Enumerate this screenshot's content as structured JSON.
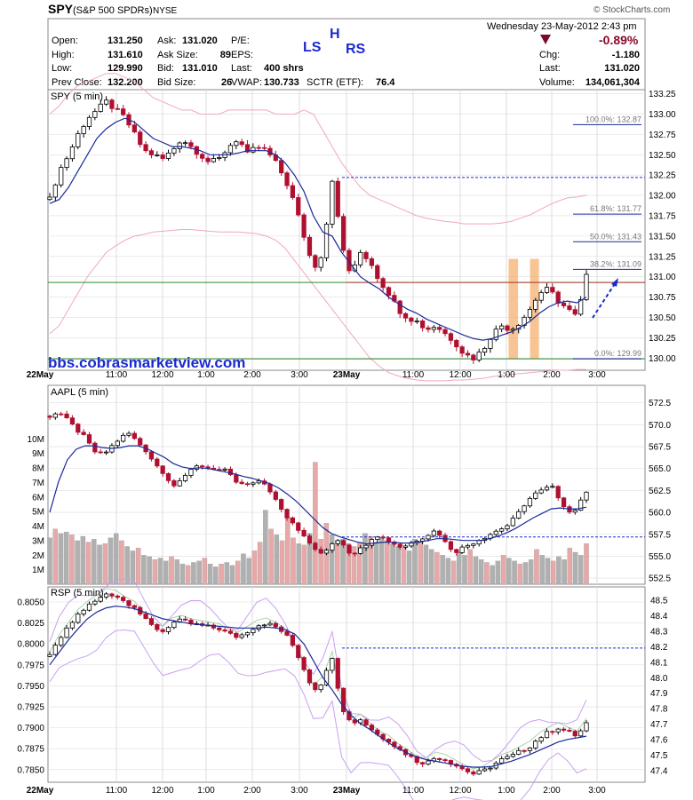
{
  "header": {
    "symbol": "SPY",
    "name": "(S&P 500 SPDRs)",
    "exchange": "NYSE",
    "watermark": "© StockCharts.com",
    "datetime": "Wednesday  23-May-2012  2:43 pm",
    "change_pct": "-0.89%",
    "fields": [
      {
        "label": "Open:",
        "value": "131.250"
      },
      {
        "label": "High:",
        "value": "131.610"
      },
      {
        "label": "Low:",
        "value": "129.990"
      },
      {
        "label": "Prev Close:",
        "value": "132.200"
      },
      {
        "label": "Ask:",
        "value": "131.020"
      },
      {
        "label": "Ask Size:",
        "value": "89"
      },
      {
        "label": "Bid:",
        "value": "131.010"
      },
      {
        "label": "Bid Size:",
        "value": "26"
      },
      {
        "label": "P/E:",
        "value": ""
      },
      {
        "label": "EPS:",
        "value": ""
      },
      {
        "label": "Last:",
        "value": "400 shrs"
      },
      {
        "label": "VWAP:",
        "value": "130.733"
      },
      {
        "label": "SCTR (ETF):",
        "value": "76.4"
      },
      {
        "label": "Chg:",
        "value": "-1.180"
      },
      {
        "label": "Last:",
        "value": "131.020"
      },
      {
        "label": "Volume:",
        "value": "134,061,304"
      }
    ],
    "pattern_label": {
      "ls": "LS",
      "h": "H",
      "rs": "RS"
    }
  },
  "colors": {
    "up": "#000000",
    "down": "#b01030",
    "ma": "#1a2a9a",
    "band": "#f0a8b8",
    "grid": "#dddddd",
    "accent_blue": "#1a2ad0",
    "green": "#2a8a2a",
    "orange": "#f4b070",
    "vol_gray": "#b0b0b0",
    "vol_pink": "#e8a8a8",
    "neg": "#8a0a2a"
  },
  "watermark_url": "bbs.cobrasmarketview.com",
  "x_axis": {
    "labels": [
      "22May",
      "11:00",
      "12:00",
      "1:00",
      "2:00",
      "3:00",
      "23May",
      "11:00",
      "12:00",
      "1:00",
      "2:00",
      "3:00"
    ]
  },
  "chart_data": [
    {
      "type": "candlestick",
      "title": "SPY (5 min)",
      "ylim": [
        129.85,
        133.3
      ],
      "yticks": [
        "133.25",
        "133.00",
        "132.75",
        "132.50",
        "132.25",
        "132.00",
        "131.75",
        "131.50",
        "131.25",
        "131.00",
        "130.75",
        "130.50",
        "130.25",
        "130.00"
      ],
      "close_path": [
        131.95,
        132.3,
        132.5,
        132.75,
        132.95,
        133.05,
        133.15,
        133.05,
        132.95,
        132.75,
        132.55,
        132.5,
        132.45,
        132.55,
        132.7,
        132.6,
        132.5,
        132.4,
        132.45,
        132.6,
        132.7,
        132.5,
        132.6,
        132.55,
        132.4,
        132.2,
        131.9,
        131.5,
        131.1,
        131.3,
        132.2,
        131.4,
        131.0,
        131.3,
        131.2,
        130.95,
        130.8,
        130.6,
        130.5,
        130.45,
        130.35,
        130.4,
        130.3,
        130.2,
        130.05,
        130.0,
        130.1,
        130.3,
        130.4,
        130.35,
        130.45,
        130.6,
        130.8,
        130.85,
        130.7,
        130.6,
        130.5,
        131.0
      ],
      "ma_path": [
        131.9,
        131.95,
        132.1,
        132.3,
        132.5,
        132.7,
        132.82,
        132.9,
        132.95,
        132.9,
        132.8,
        132.7,
        132.65,
        132.6,
        132.6,
        132.58,
        132.55,
        132.5,
        132.5,
        132.5,
        132.52,
        132.55,
        132.55,
        132.55,
        132.5,
        132.4,
        132.25,
        132.05,
        131.75,
        131.55,
        131.5,
        131.3,
        131.15,
        131.0,
        130.92,
        130.85,
        130.75,
        130.67,
        130.6,
        130.55,
        130.48,
        130.43,
        130.38,
        130.33,
        130.28,
        130.24,
        130.22,
        130.24,
        130.28,
        130.32,
        130.38,
        130.45,
        130.55,
        130.63,
        130.68,
        130.7,
        130.68,
        130.75
      ],
      "upper_band": [
        133.0,
        133.1,
        133.25,
        133.35,
        133.4,
        133.45,
        133.5,
        133.5,
        133.45,
        133.4,
        133.3,
        133.2,
        133.15,
        133.1,
        133.05,
        133.05,
        133.0,
        133.0,
        133.0,
        133.05,
        133.05,
        133.05,
        133.05,
        133.05,
        133.0,
        133.0,
        133.0,
        133.05,
        133.0,
        132.8,
        132.6,
        132.4,
        132.25,
        132.1,
        132.0,
        131.95,
        131.9,
        131.85,
        131.8,
        131.75,
        131.72,
        131.7,
        131.68,
        131.67,
        131.65,
        131.65,
        131.65,
        131.65,
        131.66,
        131.68,
        131.72,
        131.76,
        131.82,
        131.88,
        131.93,
        131.97,
        131.98,
        132.0
      ],
      "lower_band": [
        130.3,
        130.4,
        130.6,
        130.8,
        131.0,
        131.15,
        131.3,
        131.38,
        131.45,
        131.5,
        131.52,
        131.55,
        131.56,
        131.57,
        131.58,
        131.58,
        131.57,
        131.56,
        131.55,
        131.55,
        131.55,
        131.54,
        131.53,
        131.5,
        131.45,
        131.35,
        131.2,
        131.05,
        130.9,
        130.75,
        130.6,
        130.45,
        130.3,
        130.15,
        130.0,
        129.9,
        129.82,
        129.78,
        129.75,
        129.73,
        129.72,
        129.72,
        129.72,
        129.73,
        129.73,
        129.74,
        129.75,
        129.77,
        129.79,
        129.8,
        129.81,
        129.82,
        129.83,
        129.84,
        129.85,
        129.85,
        129.86,
        129.86
      ],
      "annotations": [
        {
          "label": "100.0%: 132.87",
          "value": 132.87
        },
        {
          "label": "61.8%: 131.77",
          "value": 131.77
        },
        {
          "label": "50.0%: 131.43",
          "value": 131.43
        },
        {
          "label": "38.2%: 131.09",
          "value": 131.09
        },
        {
          "label": "0.0%: 129.99",
          "value": 129.99
        }
      ],
      "hlines": {
        "red": 130.93,
        "green_upper": 130.93,
        "green_lower": 129.99,
        "blue_dashed": 132.22
      }
    },
    {
      "type": "candlestick",
      "title": "AAPL (5 min)",
      "ylim": [
        551.8,
        574.5
      ],
      "yticks": [
        "572.5",
        "570.0",
        "567.5",
        "565.0",
        "562.5",
        "560.0",
        "557.5",
        "555.0",
        "552.5"
      ],
      "vol_ticks": [
        "10M",
        "9M",
        "8M",
        "7M",
        "6M",
        "5M",
        "4M",
        "3M",
        "2M",
        "1M"
      ],
      "close_path": [
        571.0,
        571.5,
        570.5,
        569.5,
        568.5,
        567.0,
        566.5,
        567.5,
        568.5,
        569.0,
        568.0,
        567.0,
        565.5,
        564.5,
        563.0,
        563.5,
        565.0,
        565.5,
        565.0,
        564.5,
        565.0,
        563.5,
        563.0,
        563.5,
        563.5,
        562.5,
        561.0,
        559.5,
        558.5,
        557.0,
        556.0,
        555.0,
        556.5,
        557.0,
        555.5,
        555.5,
        556.5,
        557.5,
        557.0,
        556.5,
        556.0,
        556.5,
        557.0,
        557.5,
        558.0,
        556.5,
        555.5,
        556.0,
        556.5,
        557.0,
        557.5,
        558.0,
        558.5,
        559.5,
        561.0,
        562.0,
        562.5,
        563.0,
        561.5,
        560.0,
        560.5,
        562.5
      ],
      "ma_path": [
        560.0,
        563.5,
        566.0,
        567.2,
        567.6,
        567.6,
        567.4,
        567.3,
        567.4,
        567.6,
        567.6,
        567.3,
        566.8,
        566.3,
        565.6,
        565.2,
        565.0,
        565.1,
        565.0,
        564.8,
        564.6,
        564.4,
        564.1,
        563.9,
        563.6,
        563.3,
        562.8,
        562.1,
        561.3,
        560.3,
        559.3,
        558.3,
        557.6,
        557.2,
        556.9,
        556.6,
        556.4,
        556.5,
        556.6,
        556.6,
        556.5,
        556.5,
        556.6,
        556.8,
        557.0,
        557.0,
        556.9,
        556.8,
        556.8,
        556.8,
        557.0,
        557.3,
        557.7,
        558.2,
        558.8,
        559.4,
        559.9,
        560.4,
        560.5,
        560.4,
        560.4,
        560.6
      ],
      "volume_m": [
        3.2,
        3.8,
        3.5,
        3.6,
        3.4,
        3.0,
        3.3,
        2.9,
        3.1,
        2.7,
        2.8,
        3.2,
        3.5,
        3.0,
        2.6,
        2.3,
        2.5,
        2.0,
        1.9,
        1.7,
        1.8,
        1.6,
        1.9,
        1.7,
        1.4,
        1.3,
        1.5,
        1.6,
        1.8,
        1.4,
        1.2,
        1.4,
        1.5,
        1.3,
        1.6,
        2.1,
        1.8,
        2.3,
        2.9,
        5.1,
        3.8,
        3.4,
        3.0,
        4.6,
        3.2,
        2.8,
        2.7,
        3.5,
        8.4,
        3.1,
        4.2,
        3.4,
        3.0,
        3.1,
        2.8,
        2.6,
        2.9,
        3.5,
        3.3,
        2.9,
        3.2,
        3.0,
        2.8,
        2.6,
        2.5,
        2.3,
        3.1,
        2.9,
        2.7,
        2.4,
        2.2,
        2.0,
        1.8,
        1.6,
        2.2,
        2.0,
        2.4,
        1.9,
        1.7,
        1.5,
        1.3,
        1.6,
        2.0,
        1.8,
        1.6,
        1.4,
        1.5,
        1.7,
        2.4,
        2.0,
        1.8,
        1.6,
        1.9,
        1.7,
        2.5,
        2.2,
        2.0,
        2.8
      ],
      "hlines": {
        "blue_dashed": 557.2
      }
    },
    {
      "type": "candlestick",
      "title": "RSP (5 min)",
      "ylim": [
        0.7835,
        0.8068
      ],
      "yticks_left": [
        "0.8050",
        "0.8025",
        "0.8000",
        "0.7975",
        "0.7950",
        "0.7925",
        "0.7900",
        "0.7875",
        "0.7850"
      ],
      "yticks_right": [
        "48.5",
        "48.4",
        "48.3",
        "48.2",
        "48.1",
        "48.0",
        "47.9",
        "47.8",
        "47.7",
        "47.6",
        "47.5",
        "47.4"
      ],
      "close_path": [
        0.7985,
        0.8005,
        0.802,
        0.8035,
        0.8045,
        0.8052,
        0.806,
        0.8058,
        0.805,
        0.8045,
        0.803,
        0.802,
        0.8015,
        0.8025,
        0.8028,
        0.8024,
        0.8022,
        0.802,
        0.8018,
        0.8012,
        0.8008,
        0.8015,
        0.8022,
        0.8025,
        0.802,
        0.8012,
        0.7995,
        0.797,
        0.7945,
        0.7955,
        0.7985,
        0.7925,
        0.7905,
        0.791,
        0.79,
        0.789,
        0.7885,
        0.7875,
        0.7868,
        0.786,
        0.7858,
        0.7865,
        0.7862,
        0.7856,
        0.785,
        0.7845,
        0.7848,
        0.7855,
        0.7862,
        0.7866,
        0.7872,
        0.7878,
        0.7888,
        0.7895,
        0.79,
        0.7895,
        0.789,
        0.7905
      ],
      "ma_path": [
        0.7975,
        0.799,
        0.8005,
        0.8018,
        0.803,
        0.8038,
        0.8043,
        0.8045,
        0.8044,
        0.8042,
        0.8038,
        0.8034,
        0.803,
        0.8028,
        0.8026,
        0.8024,
        0.8023,
        0.8022,
        0.8021,
        0.802,
        0.8019,
        0.8019,
        0.8019,
        0.802,
        0.8019,
        0.8017,
        0.8012,
        0.8,
        0.798,
        0.796,
        0.7945,
        0.7928,
        0.7915,
        0.7905,
        0.7898,
        0.789,
        0.7882,
        0.7875,
        0.787,
        0.7865,
        0.7862,
        0.786,
        0.7858,
        0.7856,
        0.7854,
        0.7853,
        0.7853,
        0.7854,
        0.7857,
        0.786,
        0.7864,
        0.7868,
        0.7873,
        0.7878,
        0.7883,
        0.7886,
        0.7888,
        0.789
      ]
    }
  ]
}
